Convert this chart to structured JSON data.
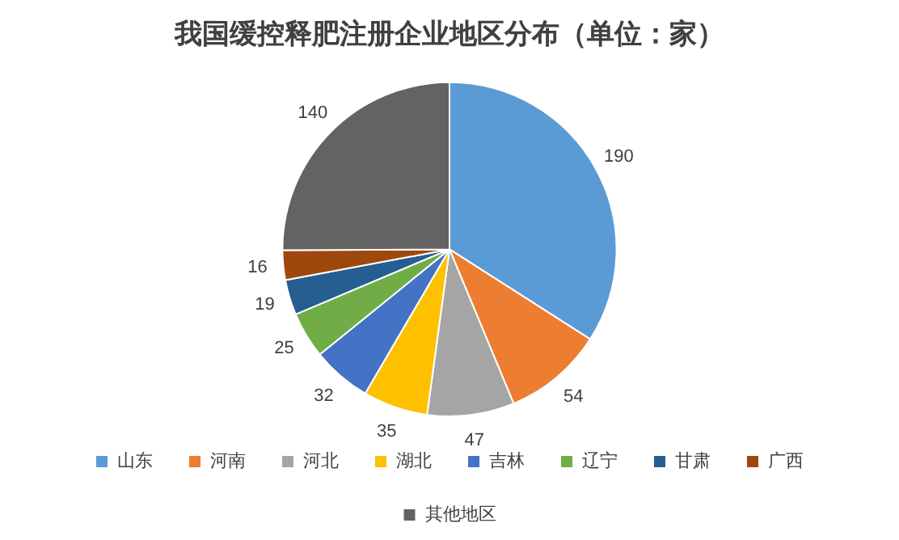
{
  "chart_data": {
    "type": "pie",
    "title": "我国缓控释肥注册企业地区分布（单位：家）",
    "categories": [
      "山东",
      "河南",
      "河北",
      "湖北",
      "吉林",
      "辽宁",
      "甘肃",
      "广西",
      "其他地区"
    ],
    "values": [
      190,
      54,
      47,
      35,
      32,
      25,
      19,
      16,
      140
    ],
    "colors": [
      "#5b9bd5",
      "#ed7d31",
      "#a5a5a5",
      "#ffc000",
      "#4472c4",
      "#70ad47",
      "#255e91",
      "#9e480e",
      "#636363"
    ],
    "data_labels": true,
    "legend": "bottom"
  }
}
